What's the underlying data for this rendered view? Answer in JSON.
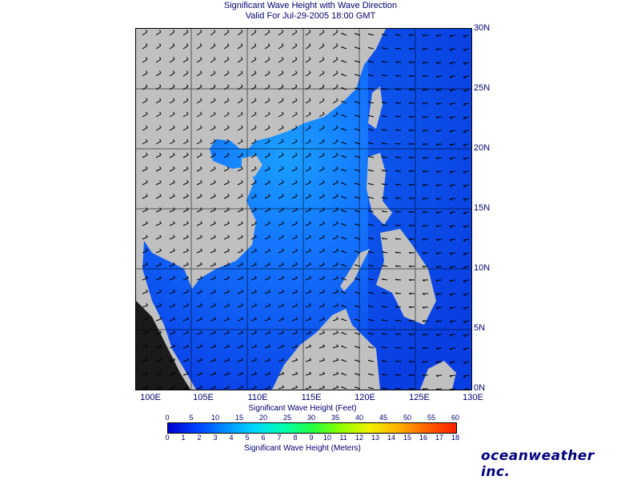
{
  "header": {
    "title": "Significant Wave Height with Wave Direction",
    "subtitle": "Valid For Jul-29-2005 18:00 GMT"
  },
  "map": {
    "lat_labels": [
      "30N",
      "25N",
      "20N",
      "15N",
      "10N",
      "5N",
      "0N"
    ],
    "lon_labels": [
      "100E",
      "105E",
      "110E",
      "115E",
      "120E",
      "125E",
      "130E"
    ],
    "land_color": "#c0c0c0",
    "sea_color": "#1e64ff",
    "arrow_color": "#000000"
  },
  "legend": {
    "feet_title": "Significant Wave Height (Feet)",
    "feet_ticks": [
      "0",
      "5",
      "10",
      "15",
      "20",
      "25",
      "30",
      "35",
      "40",
      "45",
      "50",
      "55",
      "60"
    ],
    "meters_title": "Significant Wave Height (Meters)",
    "meters_ticks": [
      "0",
      "1",
      "2",
      "3",
      "4",
      "5",
      "6",
      "7",
      "8",
      "9",
      "10",
      "11",
      "12",
      "13",
      "14",
      "15",
      "16",
      "17",
      "18"
    ],
    "colors": [
      "#0000d0",
      "#0040ff",
      "#0090ff",
      "#00d8ff",
      "#00ffb0",
      "#20ff40",
      "#90ff00",
      "#f0f000",
      "#ffb000",
      "#ff6000",
      "#ff2000"
    ]
  },
  "brand": "oceanweather inc."
}
